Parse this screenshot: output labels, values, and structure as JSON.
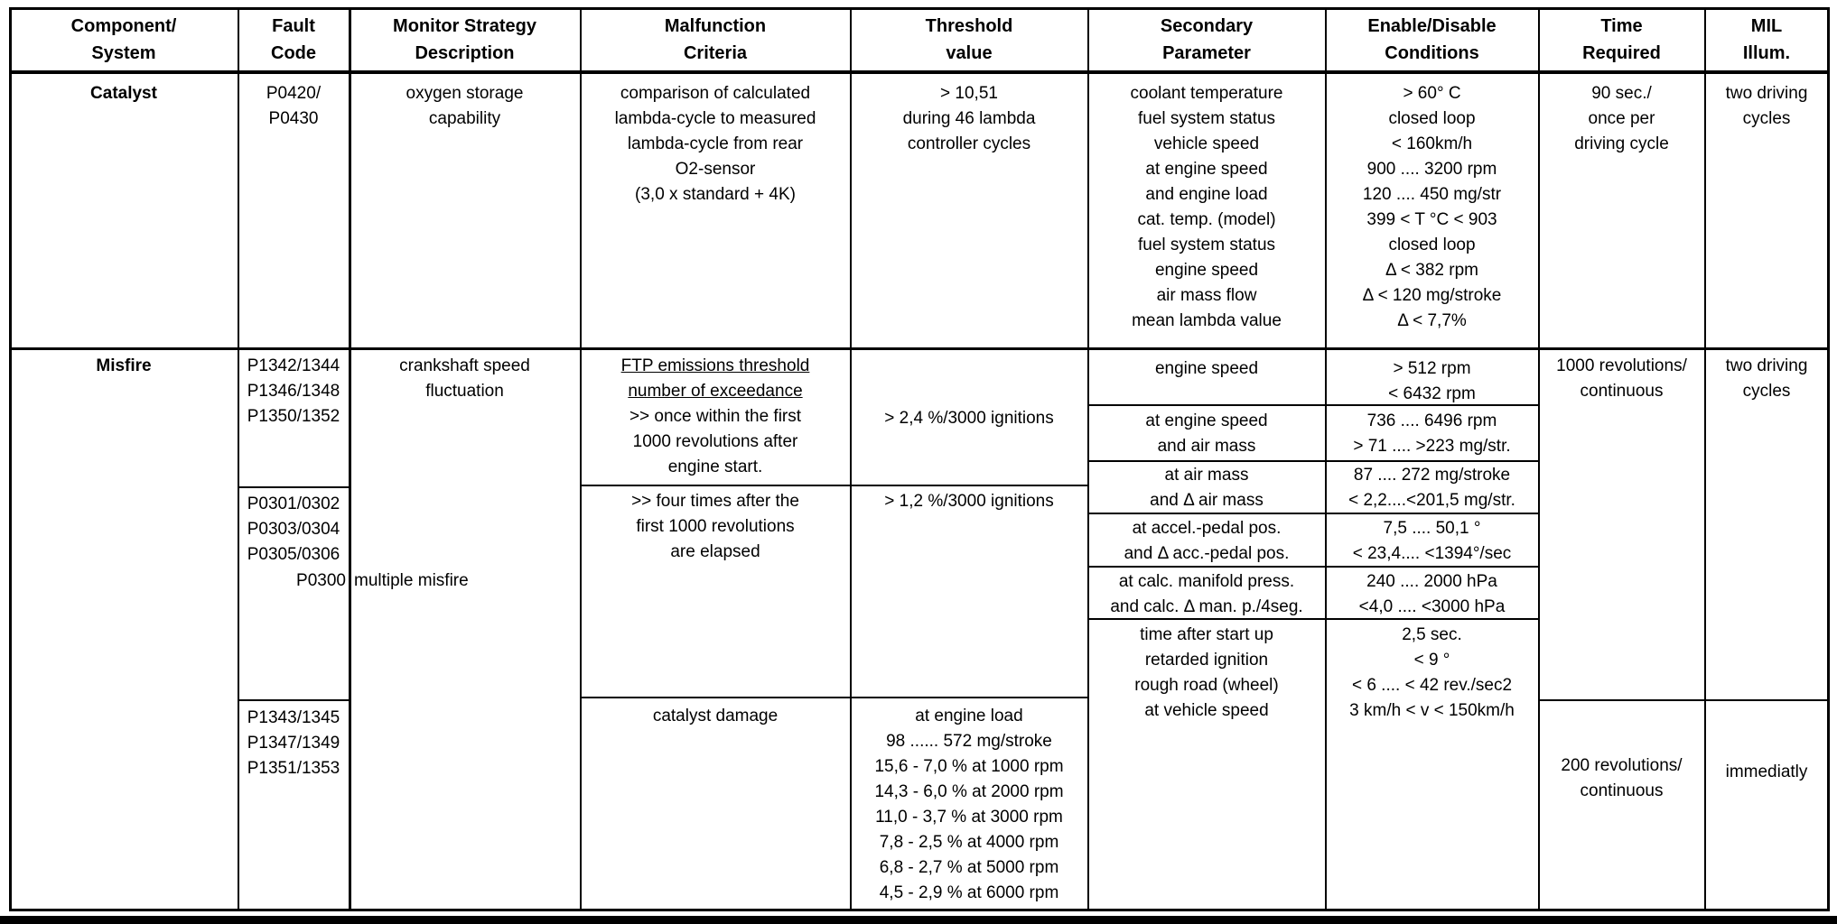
{
  "colors": {
    "ink": "#000000",
    "paper": "#ffffff"
  },
  "table": {
    "columns": [
      {
        "id": "component",
        "header": [
          "Component/",
          "System"
        ]
      },
      {
        "id": "fault_code",
        "header": [
          "Fault",
          "Code"
        ]
      },
      {
        "id": "monitor_strategy",
        "header": [
          "Monitor Strategy",
          "Description"
        ]
      },
      {
        "id": "malfunction_criteria",
        "header": [
          "Malfunction",
          "Criteria"
        ]
      },
      {
        "id": "threshold_value",
        "header": [
          "Threshold",
          "value"
        ]
      },
      {
        "id": "secondary_parameter",
        "header": [
          "Secondary",
          "Parameter"
        ]
      },
      {
        "id": "enable_disable",
        "header": [
          "Enable/Disable",
          "Conditions"
        ]
      },
      {
        "id": "time_required",
        "header": [
          "Time",
          "Required"
        ]
      },
      {
        "id": "mil_illum",
        "header": [
          "MIL",
          "Illum."
        ]
      }
    ],
    "catalyst": {
      "component": [
        "Catalyst"
      ],
      "fault_codes": [
        "P0420/",
        "P0430"
      ],
      "monitor_strategy": [
        "oxygen storage",
        "capability"
      ],
      "malfunction_criteria": [
        "comparison of calculated",
        "lambda-cycle to measured",
        "lambda-cycle from rear",
        "O2-sensor",
        "(3,0 x standard + 4K)"
      ],
      "threshold": [
        "> 10,51",
        "during 46 lambda",
        "controller cycles"
      ],
      "secondary_parameters": [
        "coolant temperature",
        "fuel system status",
        "vehicle speed",
        "at engine speed",
        "and engine load",
        "cat. temp. (model)",
        "fuel system status",
        "engine speed",
        "air mass flow",
        "mean lambda value"
      ],
      "enable_conditions": [
        "> 60° C",
        "closed loop",
        "< 160km/h",
        "900 .... 3200 rpm",
        "120 .... 450 mg/str",
        "399 < T °C < 903",
        "closed loop",
        "Δ < 382 rpm",
        "Δ < 120 mg/stroke",
        "Δ < 7,7%"
      ],
      "time_required": [
        "90 sec./",
        "once per",
        "driving cycle"
      ],
      "mil": [
        "two driving",
        "cycles"
      ]
    },
    "misfire": {
      "component": [
        "Misfire"
      ],
      "fault_codes_group1": [
        "P1342/1344",
        "P1346/1348",
        "P1350/1352"
      ],
      "fault_codes_group2": [
        "P0301/0302",
        "P0303/0304",
        "P0305/0306"
      ],
      "fault_code_multiple": "P0300",
      "fault_codes_group3": [
        "P1343/1345",
        "P1347/1349",
        "P1351/1353"
      ],
      "monitor_strategy": [
        "crankshaft speed",
        "fluctuation"
      ],
      "monitor_strategy_multiple": "multiple misfire",
      "criteria_ftp": [
        {
          "t": "FTP emissions threshold",
          "u": true
        },
        {
          "t": "number of exceedance",
          "u": true
        },
        ">> once within the first",
        "1000 revolutions after",
        "engine start."
      ],
      "criteria_four_times": [
        ">> four times after the",
        "first 1000 revolutions",
        "are elapsed"
      ],
      "criteria_catalyst_damage": [
        "catalyst damage"
      ],
      "threshold_ftp": [
        "> 2,4 %/3000 ignitions"
      ],
      "threshold_four_times": [
        "> 1,2 %/3000 ignitions"
      ],
      "threshold_catalyst_damage": [
        "at engine load",
        "98 ...... 572 mg/stroke",
        "15,6 - 7,0 % at 1000 rpm",
        "14,3 - 6,0 % at 2000 rpm",
        "11,0 - 3,7 % at 3000 rpm",
        "7,8 - 2,5 % at 4000 rpm",
        "6,8 - 2,7 % at 5000 rpm",
        "4,5 - 2,9 % at 6000 rpm"
      ],
      "secondary_rows": [
        {
          "params": [
            "engine speed"
          ],
          "conditions": [
            "> 512 rpm",
            "< 6432 rpm"
          ]
        },
        {
          "params": [
            "at engine speed",
            "and air mass"
          ],
          "conditions": [
            "736 .... 6496 rpm",
            "> 71 .... >223 mg/str."
          ]
        },
        {
          "params": [
            "at air mass",
            "and Δ air mass"
          ],
          "conditions": [
            "87 .... 272 mg/stroke",
            "< 2,2....<201,5 mg/str."
          ]
        },
        {
          "params": [
            "at accel.-pedal pos.",
            "and Δ acc.-pedal pos."
          ],
          "conditions": [
            "7,5 .... 50,1 °",
            "< 23,4.... <1394°/sec"
          ]
        },
        {
          "params": [
            "at calc. manifold press.",
            "and calc. Δ man. p./4seg."
          ],
          "conditions": [
            "240 .... 2000 hPa",
            "<4,0 .... <3000 hPa"
          ]
        },
        {
          "params": [
            "time after start up",
            "retarded ignition",
            "rough road (wheel)",
            "at vehicle speed"
          ],
          "conditions": [
            "2,5 sec.",
            "< 9 °",
            "< 6 .... < 42 rev./sec2",
            "3 km/h < v < 150km/h"
          ]
        }
      ],
      "time_required_block1": [
        "1000 revolutions/",
        "continuous"
      ],
      "time_required_block2": [
        "200 revolutions/",
        "continuous"
      ],
      "mil_block1": [
        "two driving",
        "cycles"
      ],
      "mil_block2": [
        "immediatly"
      ]
    }
  }
}
